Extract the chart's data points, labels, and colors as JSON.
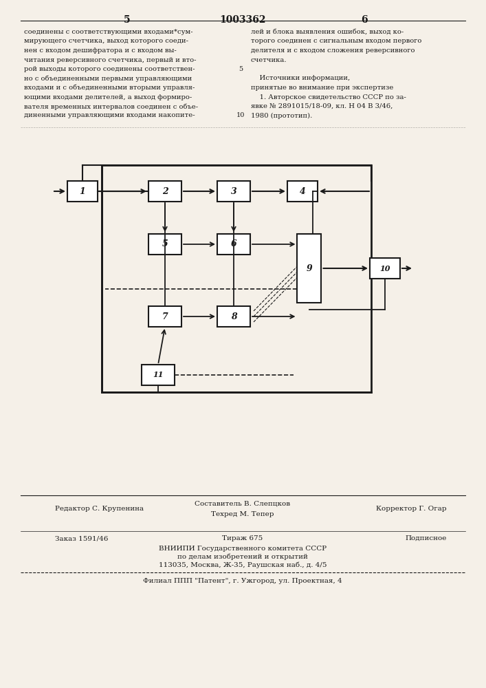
{
  "title_number": "1003362",
  "page_left": "5",
  "page_right": "6",
  "text_left": "соединены с соответствующими входами сум-\nмирующего счетчика, выход которого соеди-\nнен с входом дешифратора и с входом вы-\nчитания реверсивного счетчика, первый и вто-\nрой выходы которого соединены соответствен-\nно с объединенными первыми управляющими\nвходами и с объединенными вторыми управля-\nющими входами делителей, а выход формиро-\nвателя временных интервалов соединен с объе-\nдиненными управляющими входами накопите-",
  "text_right": "лей и блока выявления ошибок, выход ко-\nторого соединен с сигнальным входом первого\nделителя и с входом сложения реверсивного\nсчетчика.\n\n    Источники информации,\nпринятые во внимание при экспертизе\n    1. Авторское свидетельство СССР по за-\nявке № 2891015/18-09, кл. H 04 B 3/46,\n1980 (прототип).",
  "line_number_5": "5",
  "line_number_10": "10",
  "editor_line": "Редактор С. Крупенина",
  "composer_line": "Составитель В. Слепцков",
  "corrector_line": "Корректор Г. Огар",
  "techred_line": "Техред М. Тепер",
  "order_line": "Заказ 1591/46",
  "tirazh_line": "Тираж 675",
  "podpisnoe_line": "Подписное",
  "vnipi_line1": "ВНИИПИ Государственного комитета СССР",
  "vnipi_line2": "по делам изобретений и открытий",
  "vnipi_line3": "113035, Москва, Ж-35, Раушская наб., д. 4/5",
  "filial_line": "Филиал ППП \"Патент\", г. Ужгород, ул. Проектная, 4",
  "bg_color": "#f5f0e8",
  "text_color": "#1a1a1a",
  "diagram_color": "#1a1a1a"
}
